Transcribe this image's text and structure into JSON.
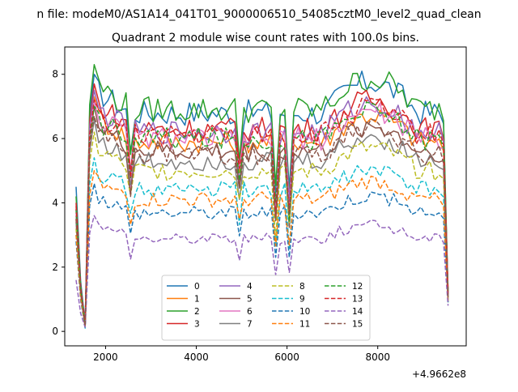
{
  "suptitle": "n file: modeM0/AS1A14_041T01_9000006510_54085cztM0_level2_quad_clean",
  "chart_data": {
    "type": "line",
    "title": "Quadrant 2 module wise count rates with 100.0s bins.",
    "xlabel": "",
    "ylabel": "",
    "x_offset_label": "+4.9662e8",
    "xlim": [
      1100,
      9950
    ],
    "ylim": [
      -0.45,
      8.85
    ],
    "x_ticks": [
      2000,
      4000,
      6000,
      8000
    ],
    "y_ticks": [
      0,
      2,
      4,
      6,
      8
    ],
    "grid": false,
    "legend_position": "lower center",
    "legend_columns": 4,
    "x_start": 1350,
    "x_step": 100,
    "x_end": 9550,
    "series": [
      {
        "name": "0",
        "color": "#1f77b4",
        "dash": "solid",
        "plateau": 6.8,
        "start": 4.5,
        "peak": 8.0,
        "end": 1.1
      },
      {
        "name": "1",
        "color": "#ff7f0e",
        "dash": "solid",
        "plateau": 5.9,
        "start": 3.5,
        "peak": 7.3,
        "end": 0.9
      },
      {
        "name": "2",
        "color": "#2ca02c",
        "dash": "solid",
        "plateau": 6.9,
        "start": 4.2,
        "peak": 8.3,
        "end": 1.2
      },
      {
        "name": "3",
        "color": "#d62728",
        "dash": "solid",
        "plateau": 6.3,
        "start": 4.0,
        "peak": 7.7,
        "end": 1.3
      },
      {
        "name": "4",
        "color": "#9467bd",
        "dash": "solid",
        "plateau": 6.2,
        "start": 3.8,
        "peak": 7.5,
        "end": 1.1
      },
      {
        "name": "5",
        "color": "#8c564b",
        "dash": "solid",
        "plateau": 5.6,
        "start": 3.6,
        "peak": 7.0,
        "end": 1.0
      },
      {
        "name": "6",
        "color": "#e377c2",
        "dash": "solid",
        "plateau": 6.0,
        "start": 3.7,
        "peak": 7.2,
        "end": 1.0
      },
      {
        "name": "7",
        "color": "#7f7f7f",
        "dash": "solid",
        "plateau": 5.3,
        "start": 3.4,
        "peak": 6.6,
        "end": 1.0
      },
      {
        "name": "8",
        "color": "#bcbd22",
        "dash": "dashed",
        "plateau": 5.0,
        "start": 3.2,
        "peak": 6.2,
        "end": 1.0
      },
      {
        "name": "9",
        "color": "#17becf",
        "dash": "dashed",
        "plateau": 4.4,
        "start": 3.0,
        "peak": 5.4,
        "end": 0.9
      },
      {
        "name": "10",
        "color": "#1f77b4",
        "dash": "dashed",
        "plateau": 3.7,
        "start": 2.8,
        "peak": 4.6,
        "end": 0.9
      },
      {
        "name": "11",
        "color": "#ff7f0e",
        "dash": "dashed",
        "plateau": 4.1,
        "start": 3.0,
        "peak": 5.0,
        "end": 0.9
      },
      {
        "name": "12",
        "color": "#2ca02c",
        "dash": "dashed",
        "plateau": 6.0,
        "start": 3.8,
        "peak": 7.0,
        "end": 1.2
      },
      {
        "name": "13",
        "color": "#d62728",
        "dash": "dashed",
        "plateau": 6.1,
        "start": 3.9,
        "peak": 7.2,
        "end": 1.1
      },
      {
        "name": "14",
        "color": "#9467bd",
        "dash": "dashed",
        "plateau": 2.9,
        "start": 1.6,
        "peak": 3.6,
        "end": 0.8
      },
      {
        "name": "15",
        "color": "#8c564b",
        "dash": "dashed",
        "plateau": 5.5,
        "start": 3.5,
        "peak": 6.7,
        "end": 1.0
      }
    ]
  }
}
